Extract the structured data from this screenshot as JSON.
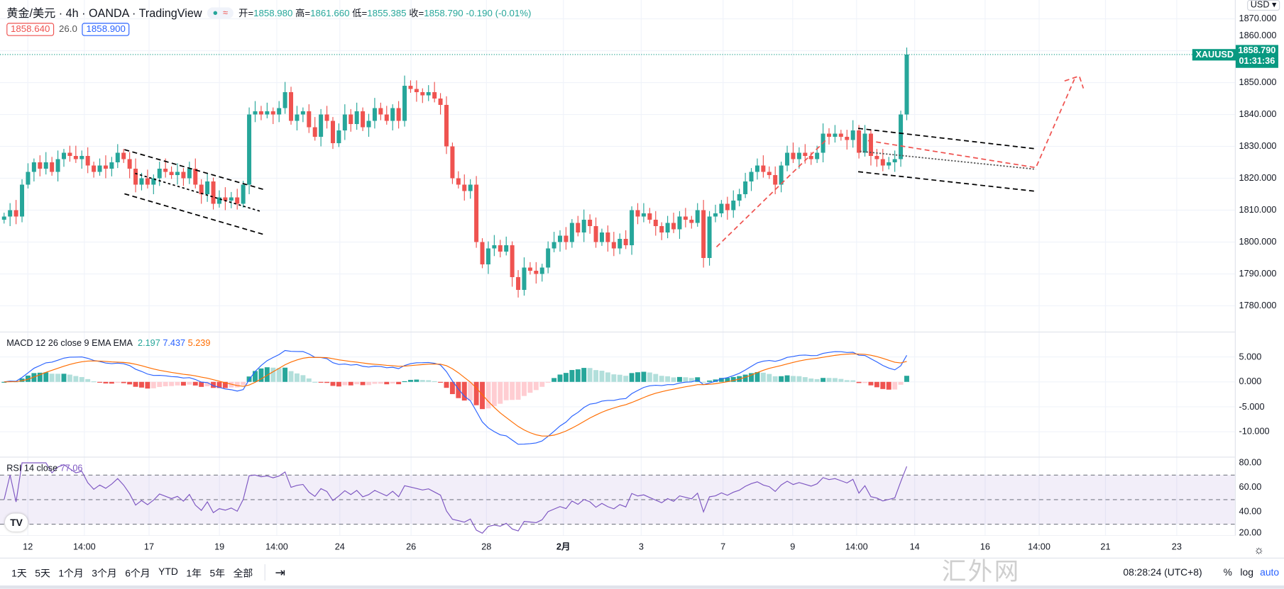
{
  "header": {
    "symbol": "黄金/美元 · 4h · OANDA · TradingView",
    "o_label": "开=",
    "o": "1858.980",
    "h_label": "高=",
    "h": "1861.660",
    "l_label": "低=",
    "l": "1855.385",
    "c_label": "收=",
    "c": "1858.790",
    "change": "-0.190 (-0.01%)",
    "bid": "1858.640",
    "spread": "26.0",
    "ask": "1858.900"
  },
  "price_axis": {
    "currency": "USD ▾",
    "labels": [
      "1870.000",
      "1860.000",
      "1850.000",
      "1840.000",
      "1830.000",
      "1820.000",
      "1810.000",
      "1800.000",
      "1790.000",
      "1780.000"
    ],
    "badge_symbol": "XAUUSD",
    "badge_price": "1858.790",
    "badge_countdown": "01:31:36"
  },
  "macd": {
    "label": "MACD 12 26 close 9 EMA EMA",
    "hist": "2.197",
    "macd": "7.437",
    "signal": "5.239",
    "axis": [
      "5.000",
      "0.000",
      "-5.000",
      "-10.000"
    ]
  },
  "rsi": {
    "label": "RSI 14 close",
    "value": "77.06",
    "axis": [
      "80.00",
      "60.00",
      "40.00",
      "20.00"
    ]
  },
  "time_axis": [
    "12",
    "14:00",
    "17",
    "19",
    "14:00",
    "24",
    "26",
    "28",
    "2月",
    "3",
    "7",
    "9",
    "14:00",
    "14",
    "16",
    "14:00",
    "21",
    "23"
  ],
  "bottom": {
    "ranges": [
      "1天",
      "5天",
      "1个月",
      "3个月",
      "6个月",
      "YTD",
      "1年",
      "5年",
      "全部"
    ],
    "clock": "08:28:24 (UTC+8)",
    "pct": "%",
    "log": "log",
    "auto": "auto",
    "watermark": "汇外网"
  },
  "colors": {
    "up": "#26a69a",
    "down": "#ef5350",
    "macd": "#2962ff",
    "signal": "#ff6d00",
    "rsi": "#7e57c2"
  },
  "chart_data": {
    "type": "candlestick",
    "symbol": "XAUUSD",
    "interval": "4h",
    "ylim": [
      1775,
      1872
    ],
    "closes": [
      1808,
      1810,
      1808,
      1818,
      1822,
      1825,
      1823,
      1825,
      1822,
      1826,
      1828,
      1827,
      1826,
      1827,
      1824,
      1822,
      1824,
      1823,
      1825,
      1828,
      1826,
      1823,
      1818,
      1820,
      1818,
      1820,
      1823,
      1822,
      1821,
      1822,
      1820,
      1823,
      1818,
      1815,
      1819,
      1812,
      1814,
      1813,
      1814,
      1812,
      1818,
      1840,
      1841,
      1840,
      1841,
      1840,
      1842,
      1847,
      1838,
      1840,
      1841,
      1836,
      1833,
      1840,
      1838,
      1831,
      1835,
      1840,
      1837,
      1841,
      1836,
      1838,
      1842,
      1840,
      1838,
      1842,
      1838,
      1849,
      1848,
      1847,
      1846,
      1847,
      1845,
      1843,
      1830,
      1820,
      1818,
      1816,
      1818,
      1800,
      1793,
      1798,
      1799,
      1797,
      1799,
      1789,
      1785,
      1792,
      1791,
      1790,
      1792,
      1798,
      1800,
      1802,
      1800,
      1806,
      1803,
      1807,
      1805,
      1800,
      1803,
      1800,
      1798,
      1801,
      1799,
      1810,
      1808,
      1809,
      1807,
      1805,
      1803,
      1806,
      1804,
      1808,
      1807,
      1806,
      1810,
      1795,
      1808,
      1809,
      1812,
      1810,
      1813,
      1815,
      1819,
      1822,
      1824,
      1822,
      1821,
      1818,
      1824,
      1828,
      1826,
      1828,
      1827,
      1826,
      1828,
      1834,
      1833,
      1834,
      1833,
      1832,
      1835,
      1828,
      1834,
      1827,
      1826,
      1824,
      1825,
      1826,
      1840,
      1858.79
    ]
  }
}
